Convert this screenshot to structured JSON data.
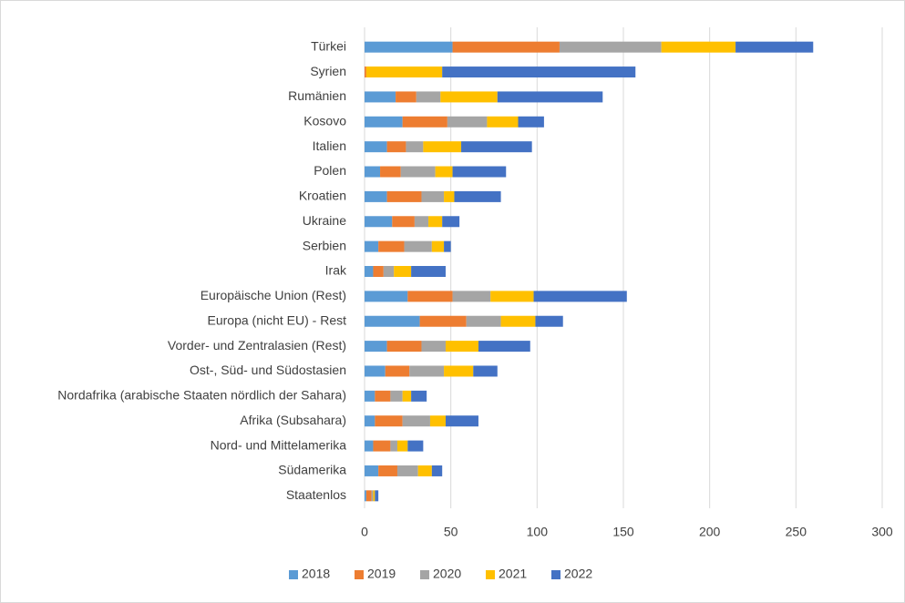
{
  "chart_data": {
    "type": "stacked-bar-horizontal",
    "categories": [
      "Türkei",
      "Syrien",
      "Rumänien",
      "Kosovo",
      "Italien",
      "Polen",
      "Kroatien",
      "Ukraine",
      "Serbien",
      "Irak",
      "Europäische Union (Rest)",
      "Europa (nicht EU) - Rest",
      "Vorder- und Zentralasien (Rest)",
      "Ost-, Süd- und Südostasien",
      "Nordafrika (arabische Staaten nördlich der Sahara)",
      "Afrika (Subsahara)",
      "Nord- und Mittelamerika",
      "Südamerika",
      "Staatenlos"
    ],
    "series": [
      {
        "name": "2018",
        "color": "#5b9bd5",
        "values": [
          51,
          0,
          18,
          22,
          13,
          9,
          13,
          16,
          8,
          5,
          25,
          32,
          13,
          12,
          6,
          6,
          5,
          8,
          1
        ]
      },
      {
        "name": "2019",
        "color": "#ed7d31",
        "values": [
          62,
          1,
          12,
          26,
          11,
          12,
          20,
          13,
          15,
          6,
          26,
          27,
          20,
          14,
          9,
          16,
          10,
          11,
          3
        ]
      },
      {
        "name": "2020",
        "color": "#a5a5a5",
        "values": [
          59,
          0,
          14,
          23,
          10,
          20,
          13,
          8,
          16,
          6,
          22,
          20,
          14,
          20,
          7,
          16,
          4,
          12,
          1
        ]
      },
      {
        "name": "2021",
        "color": "#ffc000",
        "values": [
          43,
          44,
          33,
          18,
          22,
          10,
          6,
          8,
          7,
          10,
          25,
          20,
          19,
          17,
          5,
          9,
          6,
          8,
          1
        ]
      },
      {
        "name": "2022",
        "color": "#4472c4",
        "values": [
          45,
          112,
          61,
          15,
          41,
          31,
          27,
          10,
          4,
          20,
          54,
          16,
          30,
          14,
          9,
          19,
          9,
          6,
          2
        ]
      }
    ],
    "xlim": [
      0,
      300
    ],
    "xticks": [
      0,
      50,
      100,
      150,
      200,
      250,
      300
    ],
    "grid": true,
    "legend": "bottom"
  }
}
